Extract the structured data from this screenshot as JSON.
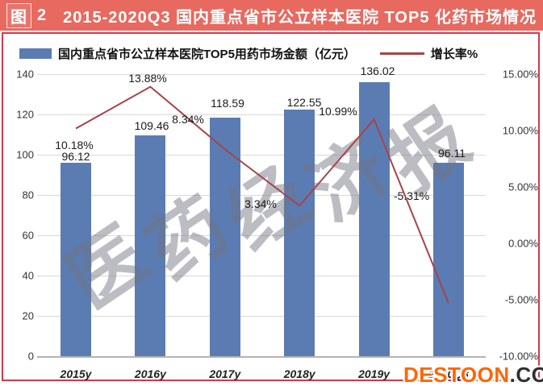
{
  "header": {
    "figure_char": "图",
    "figure_num": "2",
    "title": "2015-2020Q3 国内重点省市公立样本医院 TOP5 化药市场情况"
  },
  "legend": {
    "bars_label": "国内重点省市公立样本医院TOP5用药市场金额（亿元）",
    "line_label": "增长率%"
  },
  "watermark": "医药经济报",
  "logo": {
    "main": "DESTOON",
    "suffix": ".COM"
  },
  "colors": {
    "title_bg": "#e8695f",
    "border": "#cf3a4e",
    "bar": "#5b7cb3",
    "line": "#a6434a",
    "logo_orange": "#ff6600",
    "logo_dark": "#2f2f2f"
  },
  "axes": {
    "left_ticks": [
      "140",
      "120",
      "100",
      "80",
      "60",
      "40",
      "20",
      "0"
    ],
    "right_ticks": [
      "15.00%",
      "10.00%",
      "5.00%",
      "0.00%",
      "-5.00%",
      "-10.00%"
    ],
    "x_labels": [
      "2015y",
      "2016y",
      "2017y",
      "2018y",
      "2019y",
      "2020Q3"
    ]
  },
  "chart_data": {
    "type": "bar",
    "subtype": "bar+line combo, dual axis",
    "title": "2015-2020Q3 国内重点省市公立样本医院 TOP5 化药市场情况",
    "categories": [
      "2015y",
      "2016y",
      "2017y",
      "2018y",
      "2019y",
      "2020Q3"
    ],
    "series": [
      {
        "name": "国内重点省市公立样本医院TOP5用药市场金额（亿元）",
        "type": "bar",
        "axis": "left",
        "values": [
          96.12,
          109.46,
          118.59,
          122.55,
          136.02,
          96.11
        ],
        "labels": [
          "96.12",
          "109.46",
          "118.59",
          "122.55",
          "136.02",
          "96.11"
        ]
      },
      {
        "name": "增长率%",
        "type": "line",
        "axis": "right",
        "values": [
          10.18,
          13.88,
          8.34,
          3.34,
          10.99,
          -5.31
        ],
        "labels": [
          "10.18%",
          "13.88%",
          "8.34%",
          "3.34%",
          "10.99%",
          "-5.31%"
        ]
      }
    ],
    "left_axis_range": [
      0,
      140
    ],
    "left_axis_step": 20,
    "right_axis_range": [
      -10,
      15
    ],
    "right_axis_step": 5,
    "grid": true,
    "legend_position": "top"
  }
}
